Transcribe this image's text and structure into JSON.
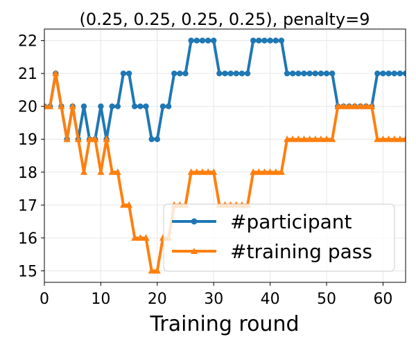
{
  "chart_data": {
    "type": "line",
    "title": "(0.25, 0.25, 0.25, 0.25), penalty=9",
    "xlabel": "Training round",
    "ylabel": "",
    "xlim": [
      0,
      64
    ],
    "ylim": [
      14.65,
      22.35
    ],
    "xticks": [
      0,
      10,
      20,
      30,
      40,
      50,
      60
    ],
    "yticks": [
      15,
      16,
      17,
      18,
      19,
      20,
      21,
      22
    ],
    "grid": true,
    "legend_position": "lower-right",
    "series": [
      {
        "name": "#participant",
        "color": "#1f77b4",
        "marker": "circle",
        "x": [
          0,
          1,
          2,
          3,
          4,
          5,
          6,
          7,
          8,
          9,
          10,
          11,
          12,
          13,
          14,
          15,
          16,
          17,
          18,
          19,
          20,
          21,
          22,
          23,
          24,
          25,
          26,
          27,
          28,
          29,
          30,
          31,
          32,
          33,
          34,
          35,
          36,
          37,
          38,
          39,
          40,
          41,
          42,
          43,
          44,
          45,
          46,
          47,
          48,
          49,
          50,
          51,
          52,
          53,
          54,
          55,
          56,
          57,
          58,
          59,
          60,
          61,
          62,
          63,
          64
        ],
        "values": [
          20,
          20,
          21,
          20,
          19,
          20,
          19,
          20,
          19,
          19,
          20,
          19,
          20,
          20,
          21,
          21,
          20,
          20,
          20,
          19,
          19,
          20,
          20,
          21,
          21,
          21,
          22,
          22,
          22,
          22,
          22,
          21,
          21,
          21,
          21,
          21,
          21,
          22,
          22,
          22,
          22,
          22,
          22,
          21,
          21,
          21,
          21,
          21,
          21,
          21,
          21,
          21,
          20,
          20,
          20,
          20,
          20,
          20,
          20,
          21,
          21,
          21,
          21,
          21,
          21
        ]
      },
      {
        "name": "#training pass",
        "color": "#ff7f0e",
        "marker": "triangle",
        "x": [
          0,
          1,
          2,
          3,
          4,
          5,
          6,
          7,
          8,
          9,
          10,
          11,
          12,
          13,
          14,
          15,
          16,
          17,
          18,
          19,
          20,
          21,
          22,
          23,
          24,
          25,
          26,
          27,
          28,
          29,
          30,
          31,
          32,
          33,
          34,
          35,
          36,
          37,
          38,
          39,
          40,
          41,
          42,
          43,
          44,
          45,
          46,
          47,
          48,
          49,
          50,
          51,
          52,
          53,
          54,
          55,
          56,
          57,
          58,
          59,
          60,
          61,
          62,
          63,
          64
        ],
        "values": [
          20,
          20,
          21,
          20,
          19,
          20,
          19,
          18,
          19,
          19,
          18,
          19,
          18,
          18,
          17,
          17,
          16,
          16,
          16,
          15,
          15,
          16,
          16,
          17,
          17,
          17,
          18,
          18,
          18,
          18,
          18,
          17,
          17,
          17,
          17,
          17,
          17,
          18,
          18,
          18,
          18,
          18,
          18,
          19,
          19,
          19,
          19,
          19,
          19,
          19,
          19,
          19,
          20,
          20,
          20,
          20,
          20,
          20,
          20,
          19,
          19,
          19,
          19,
          19,
          19
        ]
      }
    ]
  }
}
